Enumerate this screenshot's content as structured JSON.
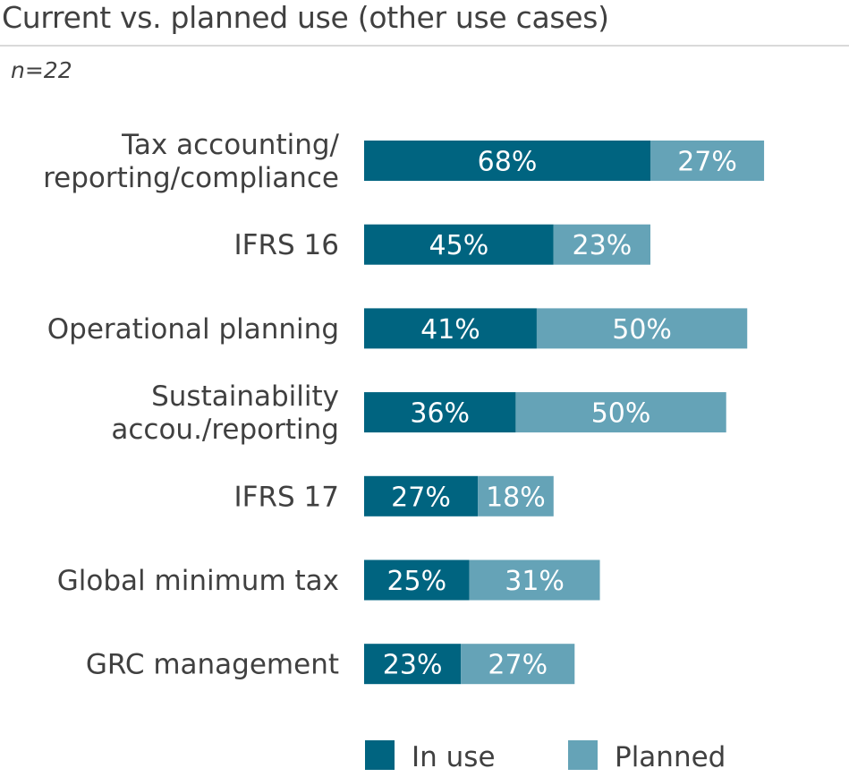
{
  "chart_data": {
    "type": "bar",
    "stacked": true,
    "orientation": "horizontal",
    "title": "Current vs. planned use (other use cases)",
    "subtitle": "n=22",
    "categories": [
      [
        "Tax accounting/",
        "reporting/compliance"
      ],
      [
        "IFRS 16"
      ],
      [
        "Operational planning"
      ],
      [
        "Sustainability",
        "accou./reporting"
      ],
      [
        "IFRS 17"
      ],
      [
        "Global minimum tax"
      ],
      [
        "GRC management"
      ]
    ],
    "series": [
      {
        "name": "In use",
        "color": "#006480",
        "values": [
          68,
          45,
          41,
          36,
          27,
          25,
          23
        ]
      },
      {
        "name": "Planned",
        "color": "#65a3b7",
        "values": [
          27,
          23,
          50,
          50,
          18,
          31,
          27
        ]
      }
    ],
    "value_suffix": "%",
    "legend_position": "bottom",
    "grid": false
  }
}
